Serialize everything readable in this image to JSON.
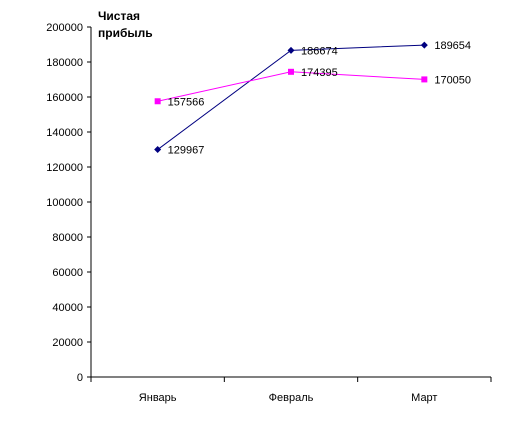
{
  "chart_data": {
    "type": "line",
    "title": "Чистая прибыль",
    "categories": [
      "Январь",
      "Февраль",
      "Март"
    ],
    "ylim": [
      0,
      200000
    ],
    "yticks": [
      0,
      20000,
      40000,
      60000,
      80000,
      100000,
      120000,
      140000,
      160000,
      180000,
      200000
    ],
    "grid": false,
    "legend": "none",
    "series": [
      {
        "color": "#000080",
        "marker": "diamond",
        "values": [
          129967,
          186674,
          189654
        ]
      },
      {
        "color": "#ff00ff",
        "marker": "square",
        "values": [
          157566,
          174395,
          170050
        ]
      }
    ]
  }
}
